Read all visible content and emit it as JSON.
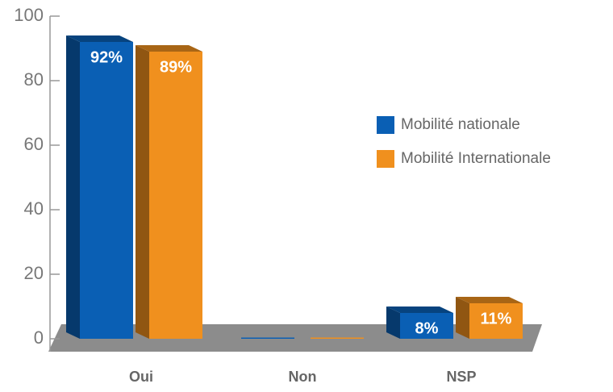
{
  "chart_data": {
    "type": "bar3d",
    "categories": [
      "Oui",
      "Non",
      "NSP"
    ],
    "series": [
      {
        "name": "Mobilité nationale",
        "color": "#0a5fb4",
        "values": [
          92,
          0,
          8
        ],
        "value_labels": [
          "92%",
          null,
          "8%"
        ]
      },
      {
        "name": "Mobilité Internationale",
        "color": "#f0901e",
        "values": [
          89,
          0,
          11
        ],
        "value_labels": [
          "89%",
          null,
          "11%"
        ]
      }
    ],
    "ylim": [
      0,
      100
    ],
    "yticks": [
      0,
      20,
      40,
      60,
      80,
      100
    ],
    "legend": "right"
  }
}
